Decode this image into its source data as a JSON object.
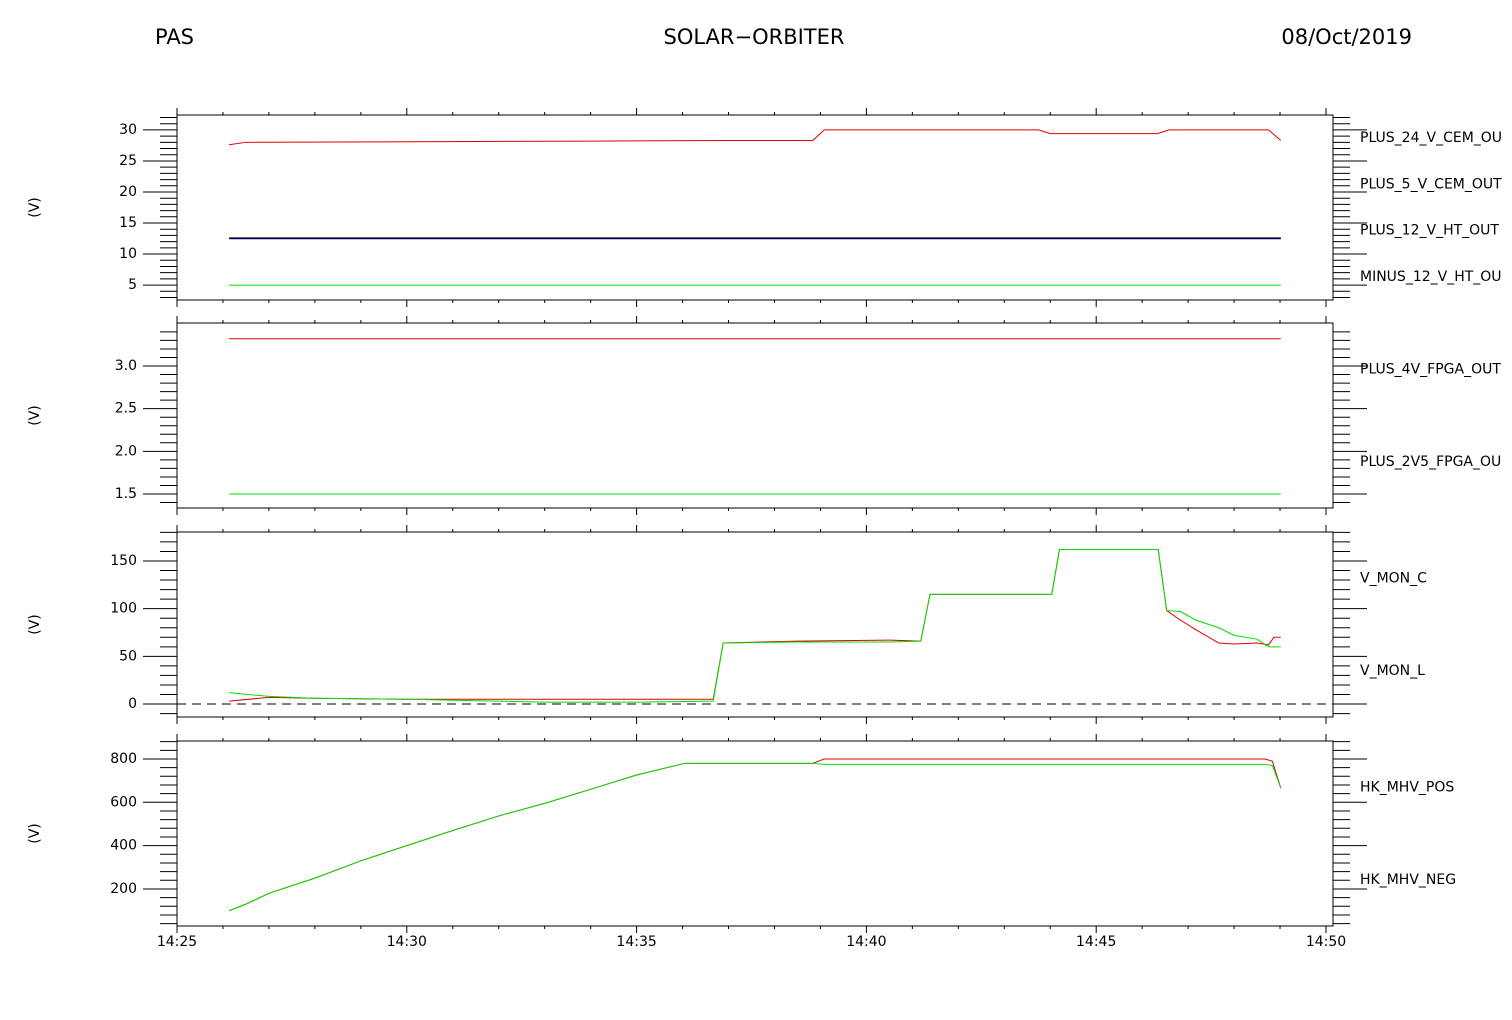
{
  "header": {
    "left": "PAS",
    "center": "SOLAR−ORBITER",
    "right": "08/Oct/2019"
  },
  "chart_data": [
    {
      "type": "line",
      "ylabel": "(V)",
      "ylim": [
        2.6,
        32.4
      ],
      "yticks": [
        5,
        10,
        15,
        20,
        25,
        30
      ],
      "x": [
        "14:26:08",
        "14:26:30",
        "14:34:00",
        "14:37:00",
        "14:38:50",
        "14:39:05",
        "14:43:45",
        "14:44:00",
        "14:46:20",
        "14:46:35",
        "14:48:45",
        "14:49:01"
      ],
      "series": [
        {
          "name": "PLUS_24_V_CEM_OU",
          "color": "#e00000",
          "values": [
            27.6,
            28.0,
            28.2,
            28.3,
            28.3,
            30,
            30,
            29.4,
            29.4,
            30,
            30,
            28.3
          ]
        },
        {
          "name": "PLUS_5_V_CEM_OUT",
          "color": "#00e000",
          "values": [
            5,
            5,
            5,
            5,
            5,
            5,
            5,
            5,
            5,
            5,
            5,
            5
          ]
        },
        {
          "name": "PLUS_12_V_HT_OUT",
          "color": "#000080",
          "values": [
            12.5,
            12.5,
            12.5,
            12.5,
            12.5,
            12.5,
            12.5,
            12.5,
            12.5,
            12.5,
            12.5,
            12.5
          ]
        },
        {
          "name": "MINUS_12_V_HT_OU",
          "color": "#000000",
          "values": [
            12.6,
            12.6,
            12.6,
            12.6,
            12.6,
            12.6,
            12.6,
            12.6,
            12.6,
            12.6,
            12.6,
            12.6
          ]
        }
      ]
    },
    {
      "type": "line",
      "ylabel": "(V)",
      "ylim": [
        1.336,
        3.504
      ],
      "yticks": [
        1.5,
        {
          "value": 2,
          "label": "2.0"
        },
        2.5,
        {
          "value": 3,
          "label": "3.0"
        }
      ],
      "x": [
        "14:26:08",
        "14:49:01"
      ],
      "series": [
        {
          "name": "PLUS_4V_FPGA_OUT",
          "color": "#e00000",
          "values": [
            3.32,
            3.32
          ]
        },
        {
          "name": "PLUS_2V5_FPGA_OU",
          "color": "#00e000",
          "values": [
            1.5,
            1.5
          ]
        }
      ]
    },
    {
      "type": "line",
      "ylabel": "(V)",
      "ylim": [
        -13.6,
        180.4
      ],
      "yticks": [
        0,
        50,
        100,
        150
      ],
      "zero_line": true,
      "x": [
        "14:26:08",
        "14:27:00",
        "14:28:00",
        "14:30:00",
        "14:33:00",
        "14:35:00",
        "14:36:40",
        "14:36:53",
        "14:38:30",
        "14:40:30",
        "14:41:11",
        "14:41:23",
        "14:44:02",
        "14:44:12",
        "14:46:21",
        "14:46:32",
        "14:46:50",
        "14:47:10",
        "14:47:40",
        "14:48:00",
        "14:48:30",
        "14:48:45",
        "14:48:52",
        "14:49:01"
      ],
      "series": [
        {
          "name": "V_MON_C",
          "color": "#e00000",
          "values": [
            3,
            7,
            6,
            5,
            5,
            5,
            5,
            64,
            66,
            67,
            66,
            115,
            115,
            162,
            162,
            98,
            88,
            78,
            64,
            63,
            64,
            62,
            70,
            70
          ]
        },
        {
          "name": "V_MON_L",
          "color": "#00e000",
          "values": [
            12,
            8,
            6,
            5,
            2,
            2,
            3,
            64,
            65,
            65,
            66,
            115,
            115,
            162,
            162,
            98,
            97,
            88,
            80,
            72,
            68,
            60,
            60,
            60
          ]
        }
      ]
    },
    {
      "type": "line",
      "ylabel": "(V)",
      "ylim": [
        29,
        883
      ],
      "yticks": [
        200,
        400,
        600,
        800
      ],
      "xlim": [
        "14:25",
        "14:50"
      ],
      "xticks": [
        "14:25",
        "14:30",
        "14:35",
        "14:40",
        "14:45",
        "14:50"
      ],
      "x": [
        "14:26:08",
        "14:26:30",
        "14:27:00",
        "14:28:00",
        "14:29:00",
        "14:30:00",
        "14:31:00",
        "14:32:00",
        "14:33:00",
        "14:34:00",
        "14:35:00",
        "14:36:03",
        "14:38:50",
        "14:39:05",
        "14:48:40",
        "14:48:50",
        "14:49:01"
      ],
      "series": [
        {
          "name": "HK_MHV_POS",
          "color": "#e00000",
          "values": [
            100,
            130,
            180,
            250,
            330,
            400,
            470,
            537,
            595,
            660,
            726,
            780,
            780,
            800,
            800,
            790,
            665
          ]
        },
        {
          "name": "HK_MHV_NEG",
          "color": "#00e000",
          "values": [
            100,
            130,
            180,
            250,
            330,
            400,
            470,
            537,
            595,
            660,
            726,
            780,
            780,
            775,
            775,
            770,
            665
          ]
        }
      ]
    }
  ]
}
